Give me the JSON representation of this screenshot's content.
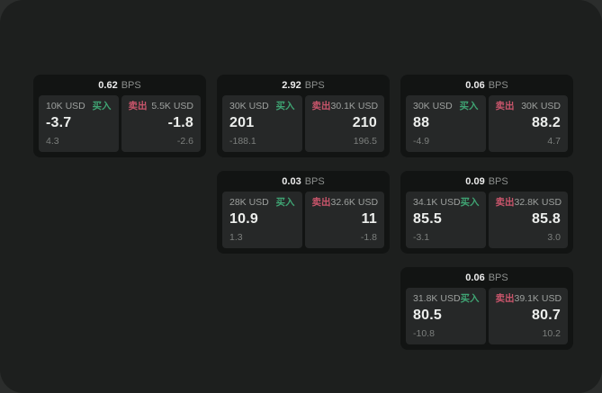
{
  "theme": {
    "page_bg": "#2b2d2c",
    "panel_bg": "#1d1f1e",
    "card_bg": "#121413",
    "tile_bg": "#262828",
    "buy_color": "#3fa473",
    "sell_color": "#c9556b",
    "price_color": "#eceeec",
    "muted_color": "#7c7f7d",
    "amount_color": "#9da09e"
  },
  "labels": {
    "bps": "BPS",
    "buy": "买入",
    "sell": "卖出"
  },
  "cards": [
    {
      "bps": "0.62",
      "buy": {
        "amount": "10K USD",
        "price": "-3.7",
        "change": "4.3"
      },
      "sell": {
        "amount": "5.5K USD",
        "price": "-1.8",
        "change": "-2.6"
      }
    },
    {
      "bps": "2.92",
      "buy": {
        "amount": "30K USD",
        "price": "201",
        "change": "-188.1"
      },
      "sell": {
        "amount": "30.1K USD",
        "price": "210",
        "change": "196.5"
      }
    },
    {
      "bps": "0.06",
      "buy": {
        "amount": "30K USD",
        "price": "88",
        "change": "-4.9"
      },
      "sell": {
        "amount": "30K USD",
        "price": "88.2",
        "change": "4.7"
      }
    },
    {
      "bps": "0.03",
      "buy": {
        "amount": "28K USD",
        "price": "10.9",
        "change": "1.3"
      },
      "sell": {
        "amount": "32.6K USD",
        "price": "11",
        "change": "-1.8"
      }
    },
    {
      "bps": "0.09",
      "buy": {
        "amount": "34.1K USD",
        "price": "85.5",
        "change": "-3.1"
      },
      "sell": {
        "amount": "32.8K USD",
        "price": "85.8",
        "change": "3.0"
      }
    },
    {
      "bps": "0.06",
      "buy": {
        "amount": "31.8K USD",
        "price": "80.5",
        "change": "-10.8"
      },
      "sell": {
        "amount": "39.1K USD",
        "price": "80.7",
        "change": "10.2"
      }
    }
  ]
}
